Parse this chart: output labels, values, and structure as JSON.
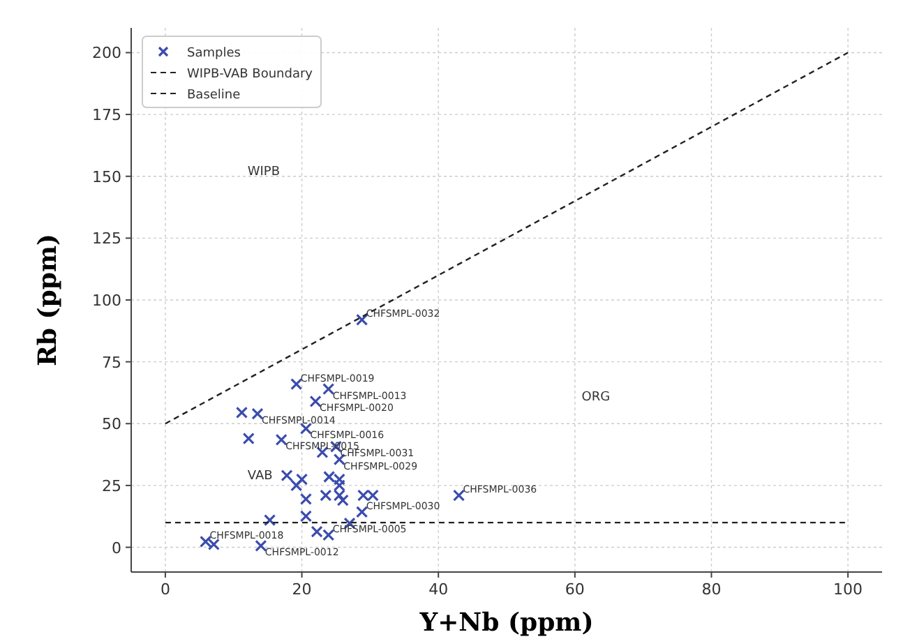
{
  "chart_data": {
    "type": "scatter",
    "xlabel": "Y+Nb (ppm)",
    "ylabel": "Rb (ppm)",
    "xlim": [
      -5,
      105
    ],
    "ylim": [
      -10,
      210
    ],
    "xticks": [
      0,
      20,
      40,
      60,
      80,
      100
    ],
    "yticks": [
      0,
      25,
      50,
      75,
      100,
      125,
      150,
      175,
      200
    ],
    "grid": true,
    "legend": "top left",
    "series": [
      {
        "name": "Samples",
        "marker": "cross",
        "color": "#3b4cad",
        "x": [
          28.8,
          19.2,
          23.9,
          22,
          11.2,
          13.5,
          20.6,
          12.2,
          17,
          25,
          23,
          25.5,
          17.8,
          19.2,
          20,
          24,
          25.5,
          25.5,
          23.5,
          25.5,
          29,
          30.4,
          43,
          20.6,
          26,
          28.8,
          20.6,
          15.3,
          27,
          22.2,
          23.9,
          5.9,
          7.1,
          14
        ],
        "values": [
          92,
          66,
          64,
          59,
          54.5,
          54,
          48,
          44,
          43.5,
          40.7,
          38.4,
          35.5,
          29,
          25,
          27.5,
          28.5,
          27.5,
          25,
          21,
          21,
          21,
          21,
          21,
          19.5,
          19,
          14.3,
          12.6,
          11,
          9.7,
          6.3,
          5,
          2.3,
          1.2,
          0.6
        ]
      },
      {
        "name": "WIPB-VAB Boundary",
        "type": "line",
        "color": "#222222",
        "line_style": "dashed",
        "x": [
          0,
          100
        ],
        "values": [
          50,
          200
        ]
      },
      {
        "name": "Baseline",
        "type": "line",
        "color": "#222222",
        "line_style": "dashed",
        "x": [
          0,
          100
        ],
        "values": [
          10,
          10
        ]
      }
    ],
    "annotations": [
      {
        "text": "CHFSMPL-0032",
        "x": 28.8,
        "y": 92
      },
      {
        "text": "CHFSMPL-0019",
        "x": 19.2,
        "y": 66
      },
      {
        "text": "CHFSMPL-0013",
        "x": 23.9,
        "y": 64
      },
      {
        "text": "CHFSMPL-0020",
        "x": 22,
        "y": 59
      },
      {
        "text": "CHFSMPL-0014",
        "x": 13.5,
        "y": 54
      },
      {
        "text": "CHFSMPL-0016",
        "x": 20.6,
        "y": 48
      },
      {
        "text": "CHFSMPL-0015",
        "x": 17,
        "y": 43.5
      },
      {
        "text": "CHFSMPL-0031",
        "x": 25,
        "y": 40.7
      },
      {
        "text": "CHFSMPL-0029",
        "x": 25.5,
        "y": 35.5
      },
      {
        "text": "CHFSMPL-0036",
        "x": 43,
        "y": 21
      },
      {
        "text": "CHFSMPL-0030",
        "x": 28.8,
        "y": 14.3
      },
      {
        "text": "CHFSMPL-0005",
        "x": 23.9,
        "y": 5
      },
      {
        "text": "CHFSMPL-0018",
        "x": 5.9,
        "y": 2.3
      },
      {
        "text": "CHFSMPL-0012",
        "x": 14,
        "y": 0.6
      },
      "WIPB",
      "VAB",
      "ORG"
    ]
  }
}
